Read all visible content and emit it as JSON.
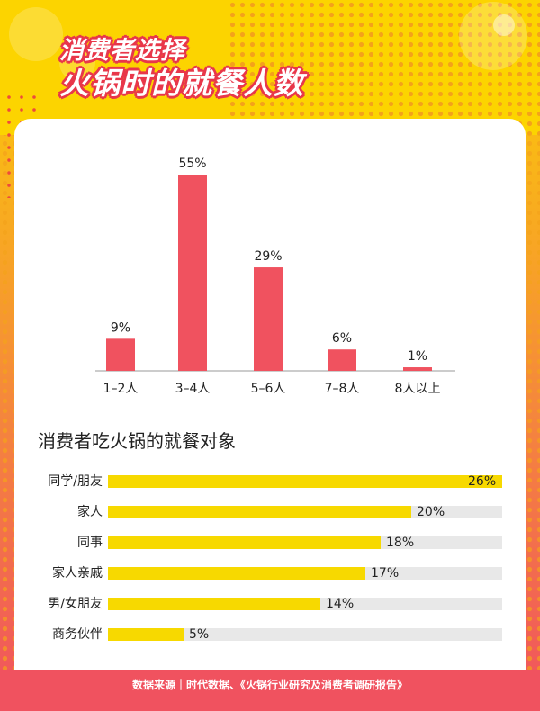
{
  "header": {
    "title_line1": "消费者选择",
    "title_line2": "火锅时的就餐人数"
  },
  "colors": {
    "bar_red": "#f0525f",
    "bar_yellow": "#f7d900",
    "track_gray": "#e8e8e8",
    "header_yellow": "#fcd400",
    "accent_red": "#e8374a"
  },
  "chart_data": [
    {
      "type": "bar",
      "categories": [
        "1–2人",
        "3–4人",
        "5–6人",
        "7–8人",
        "8人以上"
      ],
      "values": [
        9,
        55,
        29,
        6,
        1
      ],
      "value_labels": [
        "9%",
        "55%",
        "29%",
        "6%",
        "1%"
      ],
      "ylim": [
        0,
        55
      ],
      "grid": false,
      "legend": "none"
    },
    {
      "type": "bar",
      "orientation": "horizontal",
      "title": "消费者吃火锅的就餐对象",
      "categories": [
        "同学/朋友",
        "家人",
        "同事",
        "家人亲戚",
        "男/女朋友",
        "商务伙伴"
      ],
      "values": [
        26,
        20,
        18,
        17,
        14,
        5
      ],
      "value_labels": [
        "26%",
        "20%",
        "18%",
        "17%",
        "14%",
        "5%"
      ],
      "xlim": [
        0,
        26
      ],
      "grid": false,
      "legend": "none"
    }
  ],
  "footer": {
    "source": "数据来源｜时代数据、《火锅行业研究及消费者调研报告》"
  }
}
